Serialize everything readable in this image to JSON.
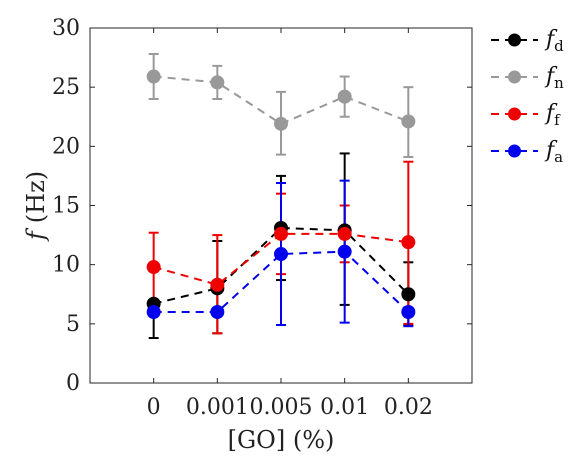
{
  "chart_data": {
    "type": "line",
    "title": "",
    "xlabel": "[GO] (%)",
    "ylabel_main": "f",
    "ylabel_unit": "(Hz)",
    "categories": [
      "0",
      "0.001",
      "0.005",
      "0.01",
      "0.02"
    ],
    "ylim": [
      0,
      30
    ],
    "yticks": [
      0,
      5,
      10,
      15,
      20,
      25,
      30
    ],
    "grid": false,
    "legend_position": "outside-right",
    "series": [
      {
        "name": "f",
        "subscript": "d",
        "color": "#000000",
        "values": [
          6.7,
          8.0,
          13.1,
          12.9,
          7.5
        ],
        "err_low": [
          3.8,
          4.2,
          8.7,
          6.6,
          4.9
        ],
        "err_high": [
          6.8,
          12.0,
          17.5,
          19.4,
          10.2
        ]
      },
      {
        "name": "f",
        "subscript": "n",
        "color": "#999999",
        "values": [
          25.9,
          25.4,
          21.9,
          24.2,
          22.1
        ],
        "err_low": [
          24.0,
          24.0,
          19.3,
          22.5,
          19.1
        ],
        "err_high": [
          27.8,
          26.8,
          24.6,
          25.9,
          25.0
        ]
      },
      {
        "name": "f",
        "subscript": "f",
        "color": "#ee0000",
        "values": [
          9.8,
          8.3,
          12.6,
          12.6,
          11.9
        ],
        "err_low": [
          6.8,
          4.2,
          9.2,
          10.2,
          5.0
        ],
        "err_high": [
          12.7,
          12.5,
          16.0,
          15.0,
          18.7
        ]
      },
      {
        "name": "f",
        "subscript": "a",
        "color": "#0000ee",
        "values": [
          6.0,
          6.0,
          10.9,
          11.1,
          6.0
        ],
        "err_low": [
          6.0,
          6.0,
          4.9,
          5.1,
          4.8
        ],
        "err_high": [
          6.0,
          6.0,
          16.9,
          17.1,
          6.0
        ]
      }
    ]
  }
}
